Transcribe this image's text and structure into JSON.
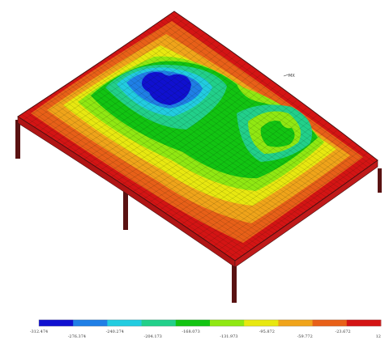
{
  "plot": {
    "max_marker": "MX"
  },
  "legend": {
    "colors": [
      "#1010d0",
      "#1f7fe6",
      "#22cce0",
      "#22d08a",
      "#12c412",
      "#90e812",
      "#e8e810",
      "#f0a41a",
      "#e86018",
      "#d41414"
    ],
    "ticks": [
      "-312.474",
      "-276.374",
      "-240.274",
      "-204.173",
      "-168.073",
      "-131.973",
      "-95.872",
      "-59.772",
      "-23.672",
      "12"
    ]
  },
  "colors": {
    "frame_outline": "#4a1010",
    "mesh_line": "#0a1a0a",
    "column": "#5a1212"
  }
}
